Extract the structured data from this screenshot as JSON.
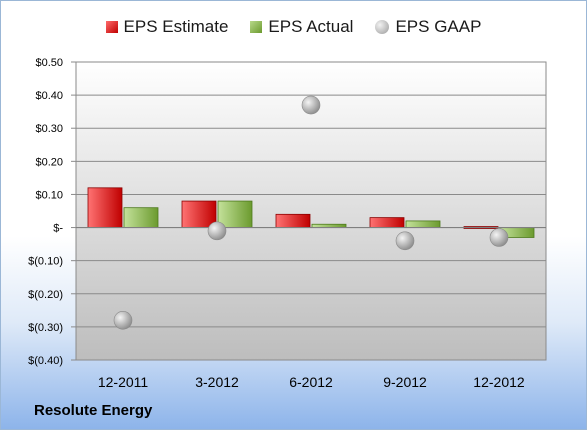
{
  "chart_data": {
    "type": "bar",
    "categories": [
      "12-2011",
      "3-2012",
      "6-2012",
      "9-2012",
      "12-2012"
    ],
    "series": [
      {
        "name": "EPS Estimate",
        "values": [
          0.12,
          0.08,
          0.04,
          0.03,
          0.0
        ]
      },
      {
        "name": "EPS Actual",
        "values": [
          0.06,
          0.08,
          0.01,
          0.02,
          -0.03
        ]
      },
      {
        "name": "EPS GAAP",
        "values": [
          -0.28,
          -0.01,
          0.37,
          -0.04,
          -0.03
        ],
        "render": "scatter"
      }
    ],
    "yticks": [
      "$0.50",
      "$0.40",
      "$0.30",
      "$0.20",
      "$0.10",
      "$-",
      "$(0.10)",
      "$(0.20)",
      "$(0.30)",
      "$(0.40)"
    ],
    "ylim": [
      -0.4,
      0.5
    ],
    "legend_position": "top",
    "grid": true
  },
  "company_name": "Resolute Energy",
  "colors": {
    "estimate": "#c00000",
    "actual": "#7aa53a",
    "gaap": "#a6a6a6",
    "plot_top": "#ffffff",
    "plot_bottom": "#bfbfbf"
  }
}
